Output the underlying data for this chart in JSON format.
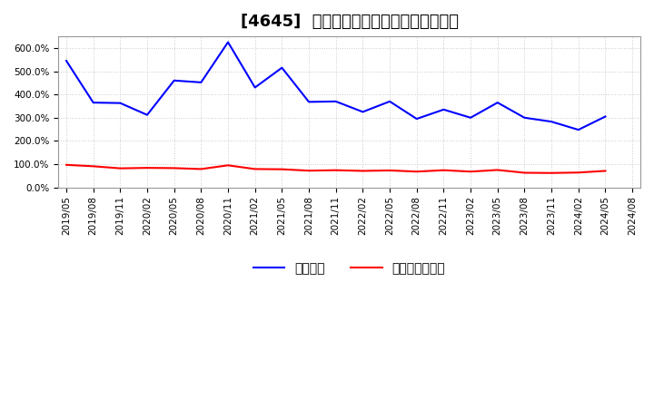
{
  "title": "[4645]  固定比率、固定長期適合率の推移",
  "background_color": "#ffffff",
  "plot_background": "#ffffff",
  "grid_color": "#bbbbbb",
  "dates": [
    "2019/05",
    "2019/08",
    "2019/11",
    "2020/02",
    "2020/05",
    "2020/08",
    "2020/11",
    "2021/02",
    "2021/05",
    "2021/08",
    "2021/11",
    "2022/02",
    "2022/05",
    "2022/08",
    "2022/11",
    "2023/02",
    "2023/05",
    "2023/08",
    "2023/11",
    "2024/02",
    "2024/05",
    "2024/08"
  ],
  "fixed_ratio": [
    545,
    365,
    363,
    312,
    460,
    452,
    625,
    430,
    515,
    368,
    370,
    325,
    370,
    295,
    335,
    300,
    365,
    300,
    283,
    248,
    305,
    null
  ],
  "long_term_ratio": [
    97,
    91,
    82,
    84,
    83,
    79,
    95,
    79,
    78,
    72,
    74,
    71,
    73,
    68,
    74,
    68,
    75,
    63,
    62,
    64,
    71,
    null
  ],
  "fixed_ratio_color": "#0000ff",
  "long_term_ratio_color": "#ff0000",
  "ylim": [
    0,
    650
  ],
  "yticks": [
    0,
    100,
    200,
    300,
    400,
    500,
    600
  ],
  "ytick_labels": [
    "0.0%",
    "100.0%",
    "200.0%",
    "300.0%",
    "400.0%",
    "500.0%",
    "600.0%"
  ],
  "legend_fixed": "固定比率",
  "legend_long": "固定長期適合率",
  "title_fontsize": 13,
  "tick_fontsize": 7.5,
  "legend_fontsize": 10
}
